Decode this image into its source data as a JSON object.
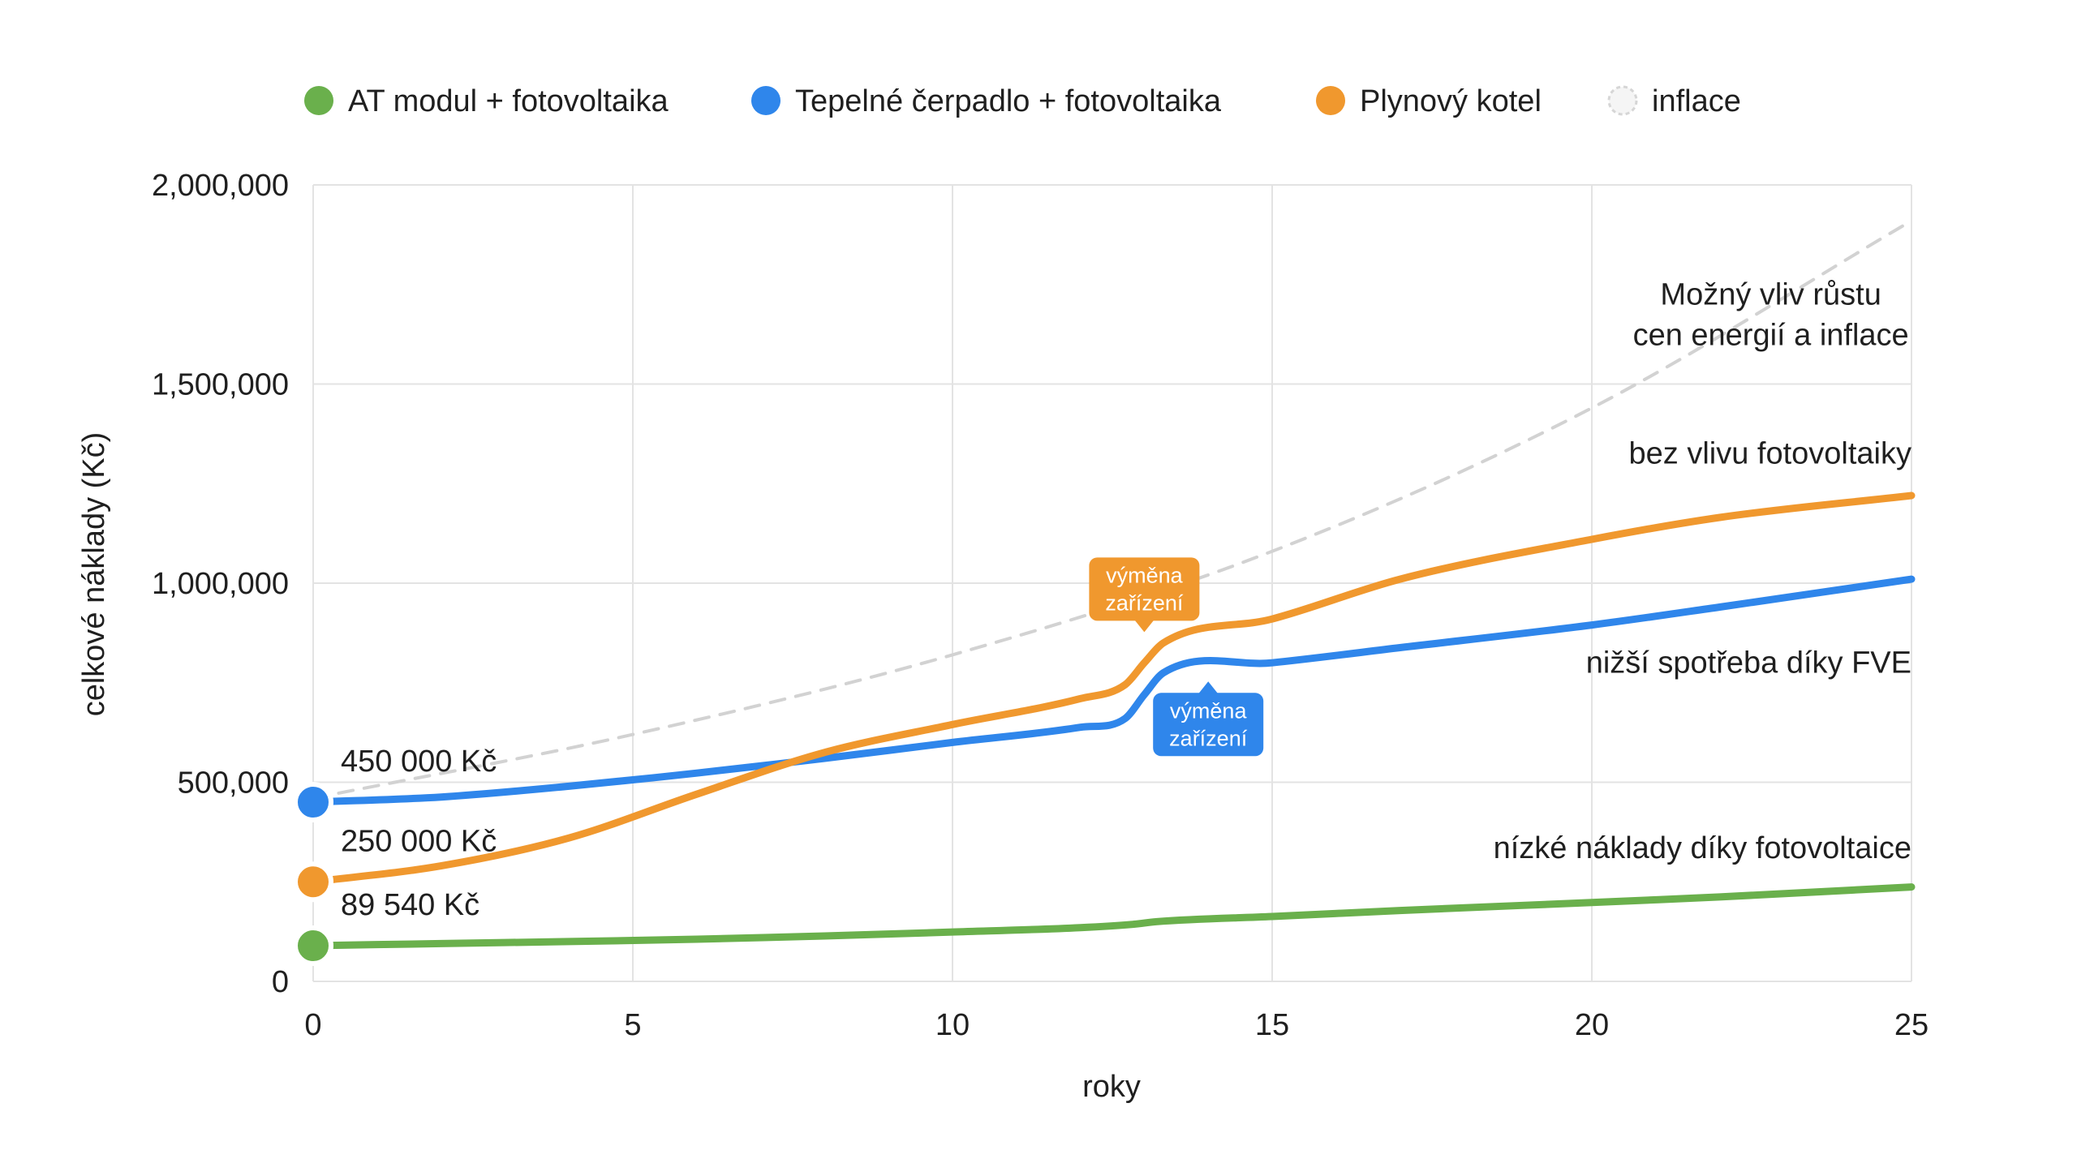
{
  "chart_data": {
    "type": "line",
    "xlabel": "roky",
    "ylabel": "celkové náklady (Kč)",
    "xlim": [
      0,
      25
    ],
    "ylim": [
      0,
      2000000
    ],
    "x_ticks": [
      0,
      5,
      10,
      15,
      20,
      25
    ],
    "x_tick_labels": [
      "0",
      "5",
      "10",
      "15",
      "20",
      "25"
    ],
    "y_ticks": [
      0,
      500000,
      1000000,
      1500000,
      2000000
    ],
    "y_tick_labels": [
      "0",
      "500,000",
      "1,000,000",
      "1,500,000",
      "2,000,000"
    ],
    "grid": true,
    "legend_position": "top",
    "series": [
      {
        "name": "AT modul + fotovoltaika",
        "color": "#6ab04c",
        "style": "solid",
        "x": [
          0,
          2,
          4,
          6,
          8,
          10,
          12,
          12.8,
          13.2,
          15,
          17,
          20,
          22,
          25
        ],
        "y": [
          89540,
          95000,
          100000,
          106000,
          114000,
          124000,
          135000,
          143000,
          150000,
          163000,
          178000,
          198000,
          212000,
          237000
        ]
      },
      {
        "name": "Tepelné čerpadlo + fotovoltaika",
        "color": "#2f86eb",
        "style": "solid",
        "x": [
          0,
          2,
          4,
          6,
          8,
          10,
          12,
          12.7,
          13.0,
          13.3,
          15,
          17,
          20,
          22,
          25
        ],
        "y": [
          450000,
          463000,
          490000,
          523000,
          560000,
          600000,
          638000,
          660000,
          720000,
          775000,
          800000,
          838000,
          895000,
          940000,
          1010000
        ]
      },
      {
        "name": "Plynový kotel",
        "color": "#f0982e",
        "style": "solid",
        "x": [
          0,
          2,
          4,
          6,
          8,
          10,
          12,
          12.7,
          13.0,
          13.3,
          15,
          17,
          20,
          22,
          25
        ],
        "y": [
          250000,
          290000,
          360000,
          470000,
          575000,
          645000,
          710000,
          745000,
          800000,
          850000,
          910000,
          1010000,
          1110000,
          1165000,
          1220000
        ]
      },
      {
        "name": "inflace",
        "color": "#d2d2d2",
        "style": "dashed",
        "x": [
          0,
          5,
          10,
          15,
          20,
          25
        ],
        "y": [
          460000,
          620000,
          820000,
          1080000,
          1440000,
          1910000
        ]
      }
    ],
    "start_labels": [
      {
        "series": 1,
        "text": "450 000 Kč",
        "x": 0,
        "y": 450000
      },
      {
        "series": 2,
        "text": "250 000 Kč",
        "x": 0,
        "y": 250000
      },
      {
        "series": 0,
        "text": "89 540 Kč",
        "x": 0,
        "y": 89540
      }
    ],
    "annotations": [
      {
        "lines": [
          "Možný vliv růstu",
          "cen energií a inflace"
        ],
        "x": 22.8,
        "y": 1700000,
        "anchor": "middle"
      },
      {
        "lines": [
          "bez vlivu fotovoltaiky"
        ],
        "x": 25,
        "y": 1300000,
        "anchor": "end"
      },
      {
        "lines": [
          "nižší spotřeba díky FVE"
        ],
        "x": 25,
        "y": 775000,
        "anchor": "end"
      },
      {
        "lines": [
          "nízké náklady díky fotovoltaice"
        ],
        "x": 25,
        "y": 310000,
        "anchor": "end"
      }
    ],
    "callouts": [
      {
        "lines": [
          "výměna",
          "zařízení"
        ],
        "color": "#f0982e",
        "x": 13.0,
        "y": 985000,
        "pointer": "down"
      },
      {
        "lines": [
          "výměna",
          "zařízení"
        ],
        "color": "#2f86eb",
        "x": 14.0,
        "y": 645000,
        "pointer": "up"
      }
    ]
  }
}
